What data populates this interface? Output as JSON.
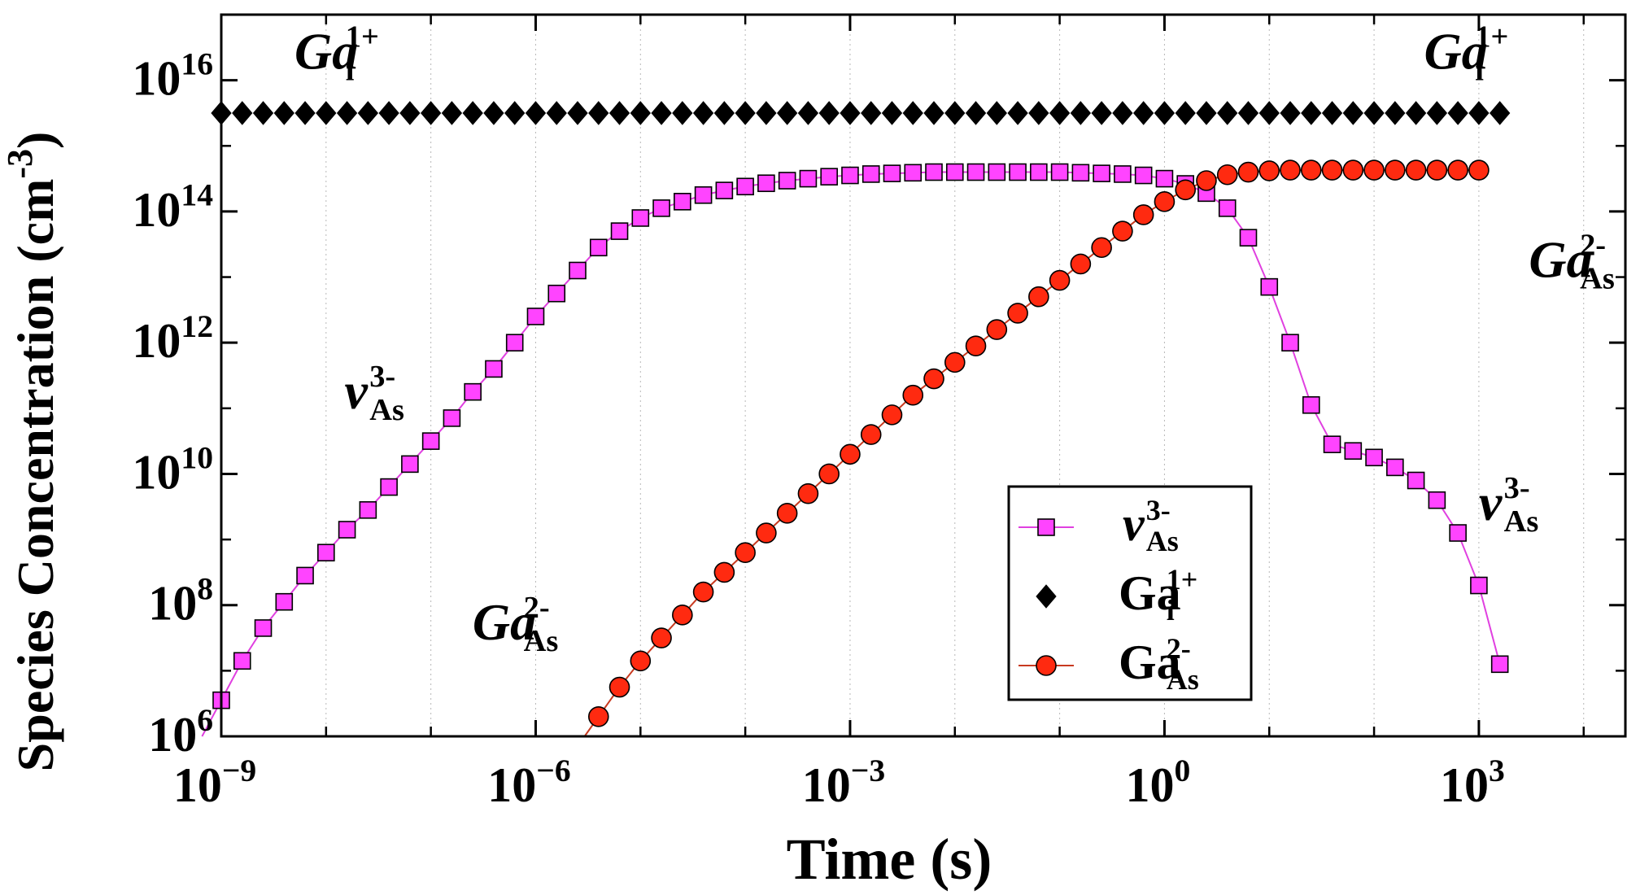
{
  "chart_data": {
    "type": "scatter",
    "xlabel": "Time (s)",
    "ylabel": "Species Concentration (cm",
    "ylabel_sup": "-3",
    "ylabel_close": ")",
    "xscale": "log",
    "yscale": "log",
    "xlim": [
      1e-09,
      25000
    ],
    "ylim": [
      1000000.0,
      1e+17
    ],
    "grid": "vertical-dotted",
    "x_ticks": [
      {
        "value": 1e-09,
        "base": "10",
        "exp": "−9"
      },
      {
        "value": 1e-06,
        "base": "10",
        "exp": "−6"
      },
      {
        "value": 0.001,
        "base": "10",
        "exp": "−3"
      },
      {
        "value": 1,
        "base": "10",
        "exp": "0"
      },
      {
        "value": 1000,
        "base": "10",
        "exp": "3"
      }
    ],
    "y_ticks": [
      {
        "value": 1000000.0,
        "base": "10",
        "exp": "6"
      },
      {
        "value": 100000000.0,
        "base": "10",
        "exp": "8"
      },
      {
        "value": 10000000000.0,
        "base": "10",
        "exp": "10"
      },
      {
        "value": 1000000000000.0,
        "base": "10",
        "exp": "12"
      },
      {
        "value": 100000000000000.0,
        "base": "10",
        "exp": "14"
      },
      {
        "value": 1e+16,
        "base": "10",
        "exp": "16"
      }
    ],
    "legend": {
      "position": "bottom-center",
      "entries": [
        {
          "series": "vAs",
          "base": "v",
          "sup": "3-",
          "sub": "As"
        },
        {
          "series": "Gai",
          "base": "Ga",
          "sup": "1+",
          "sub": "i"
        },
        {
          "series": "GaAs",
          "base": "Ga",
          "sup": "2-",
          "sub": "As"
        }
      ]
    },
    "annotations": [
      {
        "base": "Ga",
        "sup": "1+",
        "sub": "i",
        "x": 5e-09,
        "y": 1.5e+16
      },
      {
        "base": "Ga",
        "sup": "1+",
        "sub": "i",
        "x": 300,
        "y": 1.5e+16
      },
      {
        "base": "Ga",
        "sup": "2-",
        "sub": "As",
        "x": 3000,
        "y": 10000000000000.0
      },
      {
        "base": "v",
        "sup": "3-",
        "sub": "As",
        "x": 1.5e-08,
        "y": 100000000000.0
      },
      {
        "base": "v",
        "sup": "3-",
        "sub": "As",
        "x": 1000,
        "y": 2000000000.0
      },
      {
        "base": "Ga",
        "sup": "2-",
        "sub": "As",
        "x": 2.5e-07,
        "y": 30000000.0
      }
    ],
    "series": [
      {
        "key": "vAs",
        "marker": "square",
        "color": "#ff44ff",
        "line_color": "#e040e0",
        "log10_x_start": -9.0,
        "log10_x_step": 0.2,
        "log10_y": [
          6.55,
          7.15,
          7.65,
          8.05,
          8.45,
          8.8,
          9.15,
          9.45,
          9.8,
          10.15,
          10.5,
          10.85,
          11.25,
          11.6,
          12.0,
          12.4,
          12.75,
          13.1,
          13.45,
          13.7,
          13.9,
          14.05,
          14.15,
          14.25,
          14.32,
          14.38,
          14.43,
          14.47,
          14.5,
          14.53,
          14.55,
          14.57,
          14.58,
          14.59,
          14.6,
          14.6,
          14.6,
          14.6,
          14.6,
          14.6,
          14.6,
          14.59,
          14.58,
          14.57,
          14.55,
          14.5,
          14.42,
          14.28,
          14.05,
          13.6,
          12.85,
          12.0,
          11.05,
          10.45,
          10.35,
          10.25,
          10.1,
          9.9,
          9.6,
          9.1,
          8.3,
          7.1
        ]
      },
      {
        "key": "Gai",
        "marker": "diamond",
        "color": "#000000",
        "log10_x_start": -9.0,
        "log10_x_step": 0.2,
        "log10_y": [
          15.5,
          15.5,
          15.5,
          15.5,
          15.5,
          15.5,
          15.5,
          15.5,
          15.5,
          15.5,
          15.5,
          15.5,
          15.5,
          15.5,
          15.5,
          15.5,
          15.5,
          15.5,
          15.5,
          15.5,
          15.5,
          15.5,
          15.5,
          15.5,
          15.5,
          15.5,
          15.5,
          15.5,
          15.5,
          15.5,
          15.5,
          15.5,
          15.5,
          15.5,
          15.5,
          15.5,
          15.5,
          15.5,
          15.5,
          15.5,
          15.5,
          15.5,
          15.5,
          15.5,
          15.5,
          15.5,
          15.5,
          15.5,
          15.5,
          15.5,
          15.5,
          15.5,
          15.5,
          15.5,
          15.5,
          15.5,
          15.5,
          15.5,
          15.5,
          15.5,
          15.5,
          15.5
        ]
      },
      {
        "key": "GaAs",
        "marker": "circle",
        "color": "#ff2a10",
        "line_color": "#c83a20",
        "log10_x_start": -5.4,
        "log10_x_step": 0.2,
        "log10_y": [
          6.3,
          6.75,
          7.15,
          7.5,
          7.85,
          8.2,
          8.5,
          8.8,
          9.1,
          9.4,
          9.7,
          10.0,
          10.3,
          10.6,
          10.9,
          11.2,
          11.45,
          11.7,
          11.95,
          12.2,
          12.45,
          12.7,
          12.95,
          13.2,
          13.45,
          13.7,
          13.95,
          14.15,
          14.33,
          14.47,
          14.56,
          14.6,
          14.62,
          14.63,
          14.63,
          14.63,
          14.63,
          14.63,
          14.63,
          14.63,
          14.63,
          14.63,
          14.63
        ]
      }
    ]
  }
}
